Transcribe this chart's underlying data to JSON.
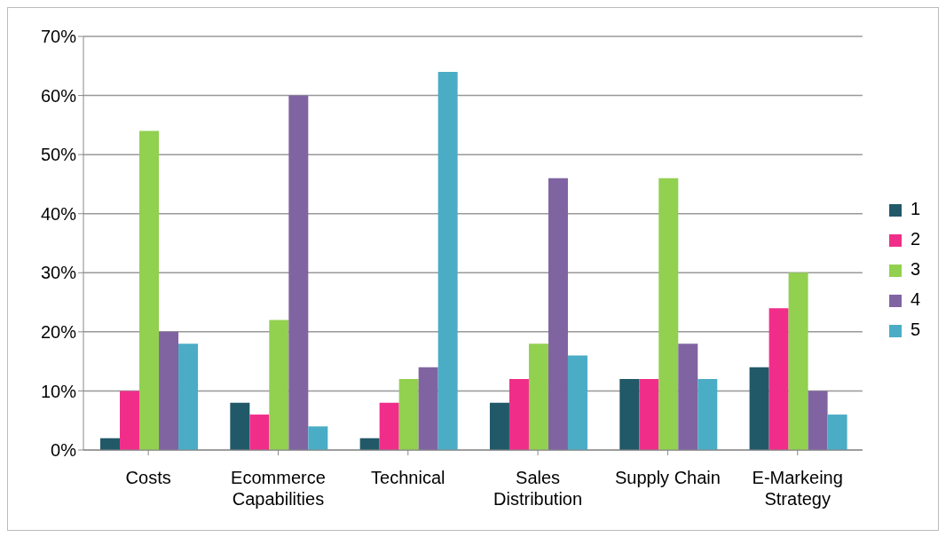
{
  "chart_data": {
    "type": "bar",
    "categories": [
      "Costs",
      "Ecommerce Capabilities",
      "Technical",
      "Sales Distribution",
      "Supply Chain",
      "E-Markeing Strategy"
    ],
    "series": [
      {
        "name": "1",
        "color": "#215968",
        "values": [
          2,
          8,
          2,
          8,
          12,
          14
        ]
      },
      {
        "name": "2",
        "color": "#f02e8a",
        "values": [
          10,
          6,
          8,
          12,
          12,
          24
        ]
      },
      {
        "name": "3",
        "color": "#92d050",
        "values": [
          54,
          22,
          12,
          18,
          46,
          30
        ]
      },
      {
        "name": "4",
        "color": "#8064a2",
        "values": [
          20,
          60,
          14,
          46,
          18,
          10
        ]
      },
      {
        "name": "5",
        "color": "#4bacc6",
        "values": [
          18,
          4,
          64,
          16,
          12,
          6
        ]
      }
    ],
    "ylim": [
      0,
      70
    ],
    "yticks": [
      {
        "value": 0,
        "label": "0%"
      },
      {
        "value": 10,
        "label": "10%"
      },
      {
        "value": 20,
        "label": "20%"
      },
      {
        "value": 30,
        "label": "30%"
      },
      {
        "value": 40,
        "label": "40%"
      },
      {
        "value": 50,
        "label": "50%"
      },
      {
        "value": 60,
        "label": "60%"
      },
      {
        "value": 70,
        "label": "70%"
      }
    ],
    "grid": "y",
    "legend": "right"
  }
}
